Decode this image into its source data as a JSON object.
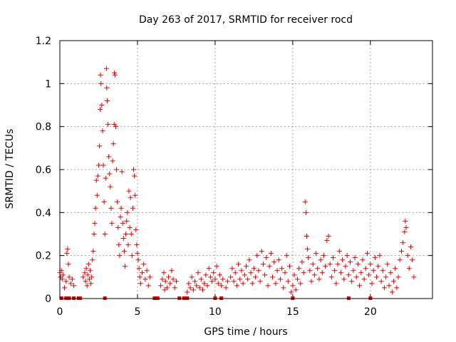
{
  "chart_data": {
    "type": "scatter",
    "title": "Day 263 of 2017, SRMTID for receiver rocd",
    "xlabel": "GPS time / hours",
    "ylabel": "SRMTID / TECUs",
    "xlim": [
      0,
      24
    ],
    "ylim": [
      0,
      1.2
    ],
    "xticks": [
      0,
      5,
      10,
      15,
      20
    ],
    "yticks": [
      0,
      0.2,
      0.4,
      0.6,
      0.8,
      1,
      1.2
    ],
    "xtick_labels": [
      "0",
      "5",
      "10",
      "15",
      "20"
    ],
    "ytick_labels": [
      "0",
      "0.2",
      "0.4",
      "0.6",
      "0.8",
      "1",
      "1.2"
    ],
    "grid": true,
    "marker": "+",
    "color": "#e00000",
    "series": [
      {
        "name": "SRMTID",
        "points": [
          [
            0.0,
            0.12
          ],
          [
            0.05,
            0.1
          ],
          [
            0.1,
            0.13
          ],
          [
            0.15,
            0.09
          ],
          [
            0.2,
            0.11
          ],
          [
            0.3,
            0.05
          ],
          [
            0.4,
            0.08
          ],
          [
            0.45,
            0.21
          ],
          [
            0.5,
            0.23
          ],
          [
            0.55,
            0.16
          ],
          [
            0.6,
            0.1
          ],
          [
            0.7,
            0.07
          ],
          [
            0.8,
            0.09
          ],
          [
            0.9,
            0.06
          ],
          [
            1.5,
            0.1
          ],
          [
            1.6,
            0.12
          ],
          [
            1.65,
            0.08
          ],
          [
            1.7,
            0.14
          ],
          [
            1.75,
            0.06
          ],
          [
            1.8,
            0.11
          ],
          [
            1.85,
            0.16
          ],
          [
            1.9,
            0.09
          ],
          [
            1.95,
            0.13
          ],
          [
            2.0,
            0.07
          ],
          [
            2.05,
            0.1
          ],
          [
            2.1,
            0.18
          ],
          [
            2.15,
            0.22
          ],
          [
            2.2,
            0.3
          ],
          [
            2.25,
            0.35
          ],
          [
            2.3,
            0.42
          ],
          [
            2.35,
            0.55
          ],
          [
            2.4,
            0.48
          ],
          [
            2.45,
            0.57
          ],
          [
            2.5,
            0.62
          ],
          [
            2.55,
            0.71
          ],
          [
            2.6,
            0.88
          ],
          [
            2.62,
            1.04
          ],
          [
            2.65,
            1.0
          ],
          [
            2.7,
            0.9
          ],
          [
            2.75,
            0.78
          ],
          [
            2.8,
            0.62
          ],
          [
            2.85,
            0.45
          ],
          [
            2.9,
            0.3
          ],
          [
            2.95,
            0.56
          ],
          [
            3.0,
            1.07
          ],
          [
            3.02,
            0.98
          ],
          [
            3.05,
            0.92
          ],
          [
            3.1,
            0.81
          ],
          [
            3.15,
            0.66
          ],
          [
            3.2,
            0.58
          ],
          [
            3.25,
            0.52
          ],
          [
            3.3,
            0.42
          ],
          [
            3.35,
            0.35
          ],
          [
            3.4,
            0.64
          ],
          [
            3.45,
            0.72
          ],
          [
            3.5,
            0.81
          ],
          [
            3.52,
            1.05
          ],
          [
            3.55,
            1.04
          ],
          [
            3.6,
            0.8
          ],
          [
            3.65,
            0.6
          ],
          [
            3.7,
            0.45
          ],
          [
            3.75,
            0.33
          ],
          [
            3.8,
            0.25
          ],
          [
            3.85,
            0.2
          ],
          [
            3.9,
            0.38
          ],
          [
            3.95,
            0.42
          ],
          [
            4.0,
            0.59
          ],
          [
            4.05,
            0.35
          ],
          [
            4.1,
            0.28
          ],
          [
            4.15,
            0.22
          ],
          [
            4.2,
            0.15
          ],
          [
            4.25,
            0.3
          ],
          [
            4.3,
            0.36
          ],
          [
            4.35,
            0.4
          ],
          [
            4.4,
            0.25
          ],
          [
            4.45,
            0.5
          ],
          [
            4.5,
            0.33
          ],
          [
            4.55,
            0.47
          ],
          [
            4.6,
            0.3
          ],
          [
            4.65,
            0.2
          ],
          [
            4.7,
            0.42
          ],
          [
            4.75,
            0.6
          ],
          [
            4.8,
            0.57
          ],
          [
            4.85,
            0.48
          ],
          [
            4.9,
            0.32
          ],
          [
            4.95,
            0.25
          ],
          [
            5.0,
            0.21
          ],
          [
            5.05,
            0.18
          ],
          [
            5.1,
            0.14
          ],
          [
            5.15,
            0.1
          ],
          [
            5.2,
            0.07
          ],
          [
            5.3,
            0.12
          ],
          [
            5.4,
            0.16
          ],
          [
            5.5,
            0.09
          ],
          [
            5.6,
            0.13
          ],
          [
            5.7,
            0.06
          ],
          [
            5.8,
            0.1
          ],
          [
            6.5,
            0.06
          ],
          [
            6.6,
            0.09
          ],
          [
            6.7,
            0.12
          ],
          [
            6.75,
            0.04
          ],
          [
            6.8,
            0.08
          ],
          [
            6.9,
            0.05
          ],
          [
            7.0,
            0.1
          ],
          [
            7.1,
            0.07
          ],
          [
            7.2,
            0.13
          ],
          [
            7.3,
            0.09
          ],
          [
            7.4,
            0.05
          ],
          [
            7.5,
            0.08
          ],
          [
            8.2,
            0.03
          ],
          [
            8.3,
            0.07
          ],
          [
            8.4,
            0.05
          ],
          [
            8.5,
            0.1
          ],
          [
            8.6,
            0.04
          ],
          [
            8.7,
            0.08
          ],
          [
            8.8,
            0.06
          ],
          [
            8.9,
            0.12
          ],
          [
            9.0,
            0.05
          ],
          [
            9.1,
            0.09
          ],
          [
            9.2,
            0.04
          ],
          [
            9.3,
            0.07
          ],
          [
            9.4,
            0.11
          ],
          [
            9.5,
            0.06
          ],
          [
            9.6,
            0.14
          ],
          [
            9.7,
            0.1
          ],
          [
            9.8,
            0.08
          ],
          [
            9.9,
            0.12
          ],
          [
            10.0,
            0.09
          ],
          [
            10.1,
            0.15
          ],
          [
            10.2,
            0.07
          ],
          [
            10.3,
            0.11
          ],
          [
            10.4,
            0.06
          ],
          [
            10.5,
            0.09
          ],
          [
            10.7,
            0.05
          ],
          [
            10.8,
            0.08
          ],
          [
            11.0,
            0.1
          ],
          [
            11.1,
            0.14
          ],
          [
            11.2,
            0.08
          ],
          [
            11.3,
            0.12
          ],
          [
            11.4,
            0.06
          ],
          [
            11.5,
            0.16
          ],
          [
            11.6,
            0.09
          ],
          [
            11.7,
            0.13
          ],
          [
            11.8,
            0.07
          ],
          [
            11.9,
            0.11
          ],
          [
            12.0,
            0.15
          ],
          [
            12.1,
            0.09
          ],
          [
            12.2,
            0.18
          ],
          [
            12.3,
            0.12
          ],
          [
            12.4,
            0.07
          ],
          [
            12.5,
            0.14
          ],
          [
            12.6,
            0.1
          ],
          [
            12.7,
            0.2
          ],
          [
            12.8,
            0.13
          ],
          [
            12.9,
            0.08
          ],
          [
            13.0,
            0.22
          ],
          [
            13.1,
            0.16
          ],
          [
            13.2,
            0.11
          ],
          [
            13.3,
            0.19
          ],
          [
            13.4,
            0.06
          ],
          [
            13.5,
            0.15
          ],
          [
            13.6,
            0.21
          ],
          [
            13.7,
            0.1
          ],
          [
            13.8,
            0.17
          ],
          [
            13.9,
            0.07
          ],
          [
            14.0,
            0.13
          ],
          [
            14.1,
            0.18
          ],
          [
            14.2,
            0.09
          ],
          [
            14.3,
            0.14
          ],
          [
            14.4,
            0.05
          ],
          [
            14.5,
            0.12
          ],
          [
            14.6,
            0.2
          ],
          [
            14.7,
            0.08
          ],
          [
            14.8,
            0.15
          ],
          [
            14.9,
            0.03
          ],
          [
            15.0,
            0.06
          ],
          [
            15.1,
            0.11
          ],
          [
            15.2,
            0.04
          ],
          [
            15.3,
            0.09
          ],
          [
            15.4,
            0.14
          ],
          [
            15.5,
            0.07
          ],
          [
            15.6,
            0.17
          ],
          [
            15.7,
            0.12
          ],
          [
            15.8,
            0.45
          ],
          [
            15.85,
            0.4
          ],
          [
            15.9,
            0.29
          ],
          [
            15.95,
            0.23
          ],
          [
            16.0,
            0.19
          ],
          [
            16.1,
            0.13
          ],
          [
            16.2,
            0.08
          ],
          [
            16.3,
            0.16
          ],
          [
            16.4,
            0.11
          ],
          [
            16.5,
            0.21
          ],
          [
            16.6,
            0.14
          ],
          [
            16.7,
            0.09
          ],
          [
            16.8,
            0.18
          ],
          [
            16.9,
            0.12
          ],
          [
            17.0,
            0.2
          ],
          [
            17.1,
            0.15
          ],
          [
            17.2,
            0.27
          ],
          [
            17.3,
            0.29
          ],
          [
            17.4,
            0.16
          ],
          [
            17.5,
            0.1
          ],
          [
            17.6,
            0.19
          ],
          [
            17.7,
            0.13
          ],
          [
            17.8,
            0.07
          ],
          [
            17.9,
            0.16
          ],
          [
            18.0,
            0.22
          ],
          [
            18.1,
            0.12
          ],
          [
            18.2,
            0.18
          ],
          [
            18.3,
            0.09
          ],
          [
            18.4,
            0.15
          ],
          [
            18.5,
            0.2
          ],
          [
            18.6,
            0.11
          ],
          [
            18.7,
            0.17
          ],
          [
            18.8,
            0.08
          ],
          [
            18.9,
            0.13
          ],
          [
            19.0,
            0.19
          ],
          [
            19.1,
            0.1
          ],
          [
            19.2,
            0.16
          ],
          [
            19.3,
            0.06
          ],
          [
            19.4,
            0.12
          ],
          [
            19.5,
            0.18
          ],
          [
            19.6,
            0.09
          ],
          [
            19.7,
            0.14
          ],
          [
            19.8,
            0.21
          ],
          [
            19.9,
            0.11
          ],
          [
            20.0,
            0.16
          ],
          [
            20.1,
            0.07
          ],
          [
            20.2,
            0.13
          ],
          [
            20.3,
            0.19
          ],
          [
            20.4,
            0.1
          ],
          [
            20.5,
            0.15
          ],
          [
            20.6,
            0.2
          ],
          [
            20.7,
            0.08
          ],
          [
            20.8,
            0.13
          ],
          [
            20.9,
            0.05
          ],
          [
            21.0,
            0.1
          ],
          [
            21.1,
            0.16
          ],
          [
            21.2,
            0.06
          ],
          [
            21.3,
            0.12
          ],
          [
            21.4,
            0.03
          ],
          [
            21.5,
            0.08
          ],
          [
            21.6,
            0.14
          ],
          [
            21.7,
            0.05
          ],
          [
            21.8,
            0.1
          ],
          [
            21.9,
            0.18
          ],
          [
            22.0,
            0.22
          ],
          [
            22.1,
            0.26
          ],
          [
            22.2,
            0.31
          ],
          [
            22.25,
            0.36
          ],
          [
            22.3,
            0.33
          ],
          [
            22.4,
            0.2
          ],
          [
            22.5,
            0.14
          ],
          [
            22.6,
            0.24
          ],
          [
            22.7,
            0.18
          ],
          [
            22.8,
            0.1
          ]
        ]
      }
    ],
    "zero_markers_x": [
      0.1,
      0.4,
      0.6,
      0.9,
      1.2,
      1.3,
      2.9,
      6.1,
      6.3,
      7.7,
      8.0,
      8.2,
      10.0,
      10.4,
      15.0,
      18.6,
      20.0
    ]
  }
}
